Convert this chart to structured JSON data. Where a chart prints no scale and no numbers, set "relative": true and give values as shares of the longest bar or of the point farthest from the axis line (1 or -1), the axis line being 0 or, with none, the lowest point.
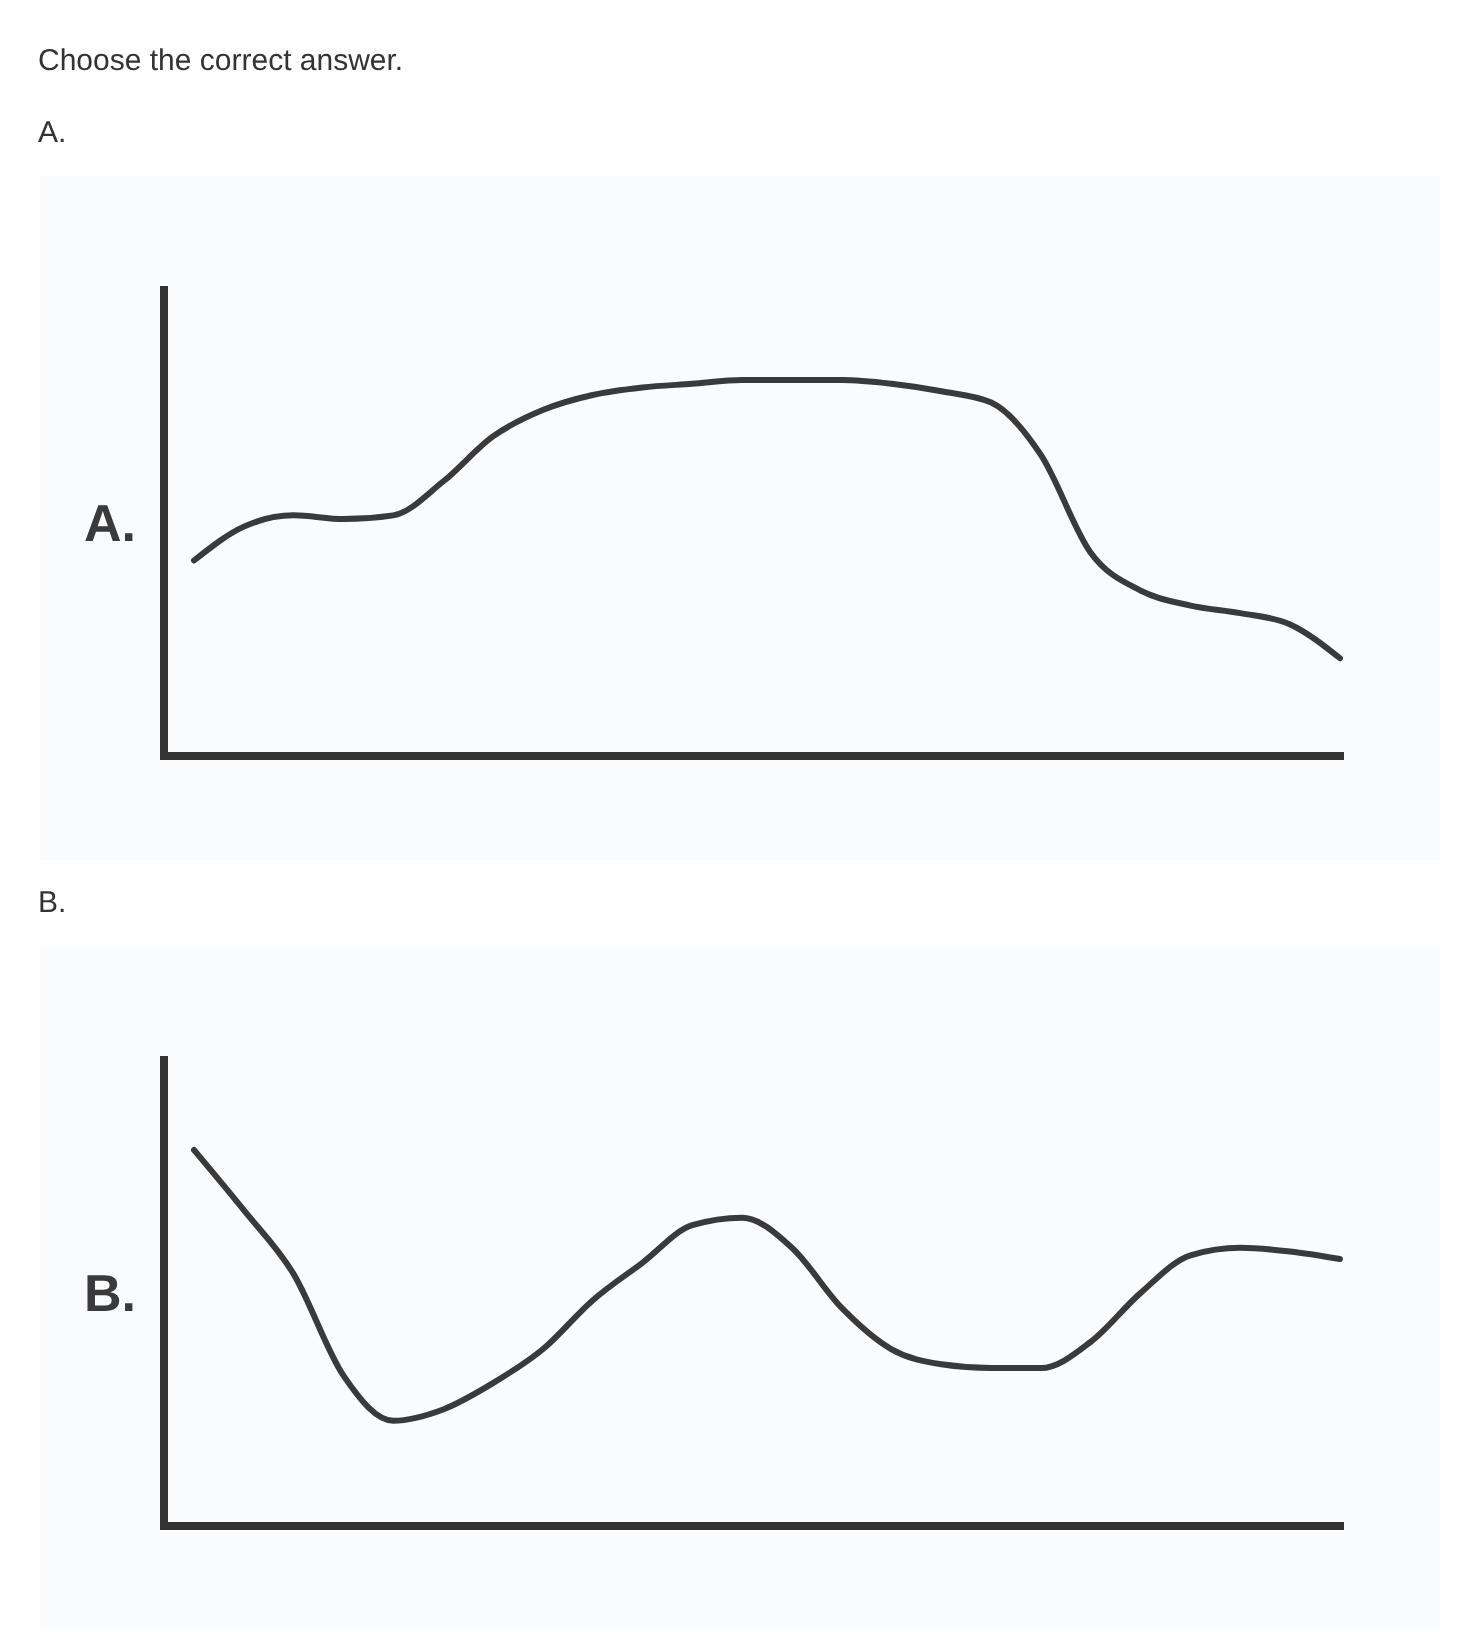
{
  "chart_data": [
    {
      "type": "line",
      "title": "Choose the correct answer.",
      "subtitle": "A.",
      "ylabel": "A.",
      "relative": true,
      "color": "#3a3a3a",
      "categories": [
        null,
        null,
        null,
        null,
        null,
        null,
        null,
        null,
        null,
        null,
        null,
        null,
        null,
        null,
        null,
        null,
        null,
        null,
        null,
        null,
        null,
        null,
        null,
        null
      ],
      "values": [
        0.52,
        0.61,
        0.64,
        0.63,
        0.64,
        0.73,
        0.85,
        0.92,
        0.96,
        0.98,
        0.99,
        1,
        1,
        1,
        0.99,
        0.97,
        0.94,
        0.8,
        0.54,
        0.44,
        0.4,
        0.38,
        0.35,
        0.26
      ]
    },
    {
      "type": "line",
      "subtitle": "B.",
      "ylabel": "B.",
      "relative": true,
      "color": "#3a3a3a",
      "categories": [
        null,
        null,
        null,
        null,
        null,
        null,
        null,
        null,
        null,
        null,
        null,
        null,
        null,
        null,
        null,
        null,
        null,
        null,
        null,
        null,
        null,
        null,
        null,
        null
      ],
      "values": [
        1,
        0.84,
        0.67,
        0.4,
        0.28,
        0.31,
        0.38,
        0.47,
        0.6,
        0.7,
        0.8,
        0.82,
        0.74,
        0.58,
        0.47,
        0.43,
        0.42,
        0.42,
        0.49,
        0.62,
        0.72,
        0.74,
        0.73,
        0.71
      ]
    }
  ]
}
